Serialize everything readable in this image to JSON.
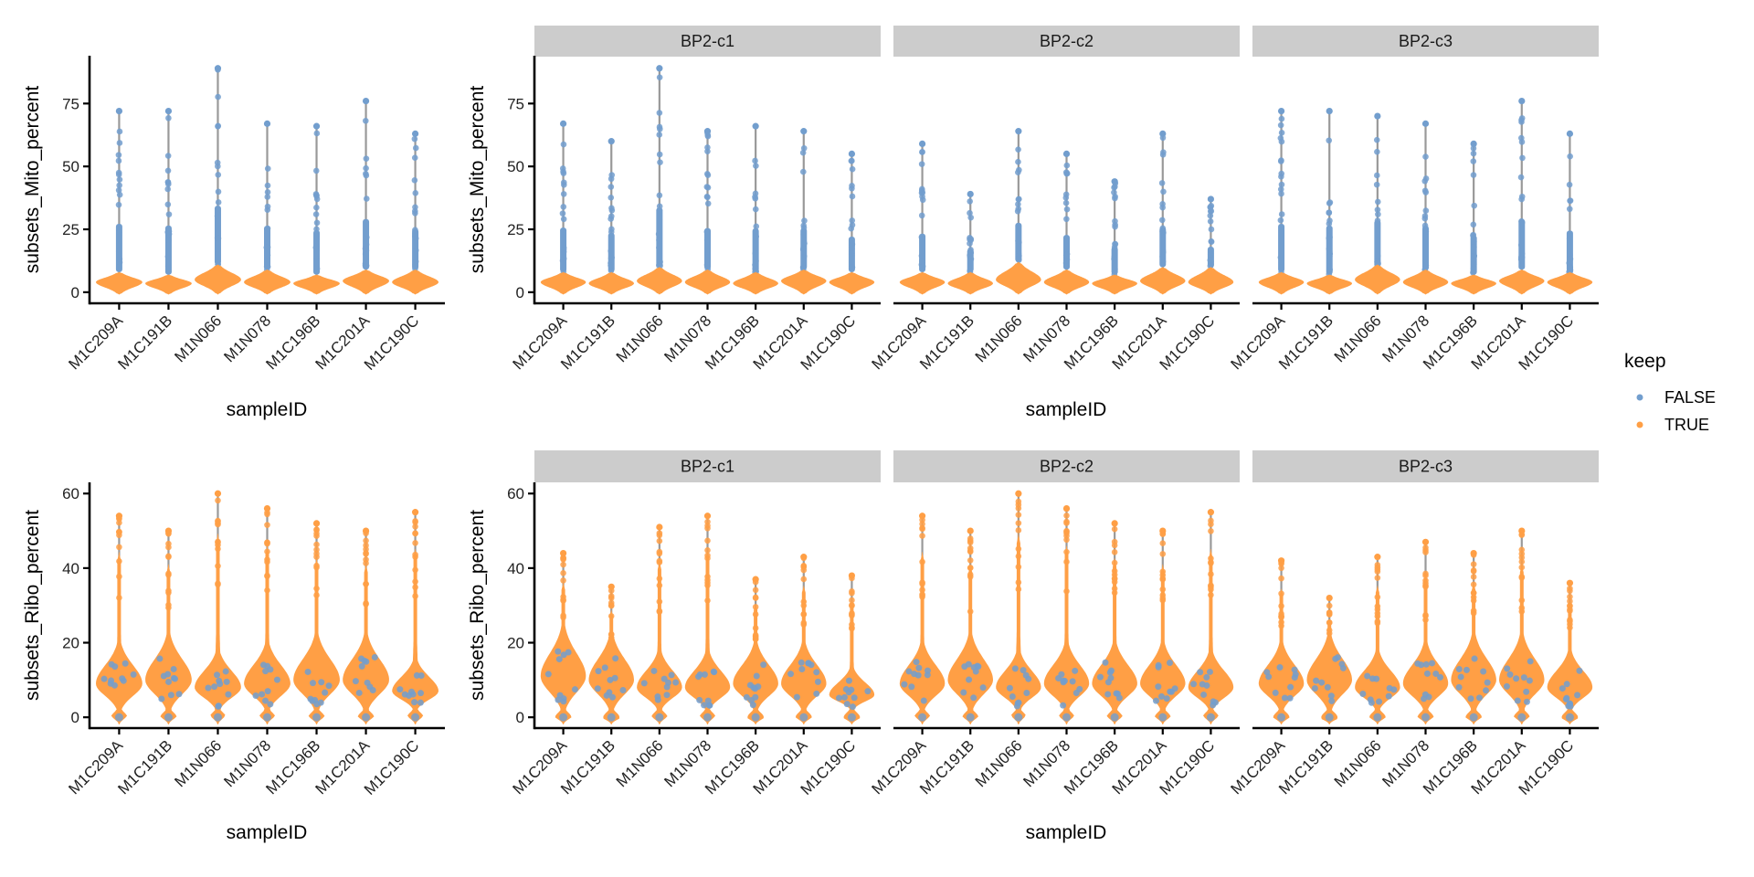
{
  "chart_data": {
    "type": "violin",
    "xlabel": "sampleID",
    "categories": [
      "M1C209A",
      "M1C191B",
      "M1N066",
      "M1N078",
      "M1C196B",
      "M1C201A",
      "M1C190C"
    ],
    "colors": {
      "FALSE": "#729ECE",
      "TRUE": "#FF9F45",
      "whisker": "#999999",
      "strip": "#CCCCCC"
    },
    "legend": {
      "title": "keep",
      "position": "right",
      "entries": [
        {
          "label": "FALSE",
          "color": "#729ECE"
        },
        {
          "label": "TRUE",
          "color": "#FF9F45"
        }
      ]
    },
    "grid": false,
    "rows": [
      {
        "ylabel": "subsets_Mito_percent",
        "ylim": [
          -4.4,
          94
        ],
        "yticks": [
          0,
          25,
          50,
          75
        ],
        "panels": [
          {
            "facet": "",
            "max": [
              72,
              72,
              89,
              67,
              66,
              76,
              63
            ],
            "true_max": [
              8,
              7,
              11,
              9,
              7,
              9,
              9
            ],
            "mode": [
              4,
              3.5,
              5,
              4,
              3.5,
              4.5,
              4
            ]
          },
          {
            "facet": "BP2-c1",
            "max": [
              67,
              60,
              89,
              64,
              66,
              64,
              55
            ],
            "true_max": [
              8,
              8,
              10,
              9,
              8,
              9,
              8
            ],
            "mode": [
              4,
              3.5,
              4.5,
              4,
              3.5,
              4.5,
              4
            ]
          },
          {
            "facet": "BP2-c2",
            "max": [
              59,
              39,
              64,
              55,
              44,
              63,
              37
            ],
            "true_max": [
              8,
              8,
              12,
              9,
              7,
              10,
              10
            ],
            "mode": [
              4,
              3.5,
              5,
              4,
              3.5,
              4.5,
              4
            ]
          },
          {
            "facet": "BP2-c3",
            "max": [
              72,
              72,
              70,
              67,
              59,
              76,
              63
            ],
            "true_max": [
              8,
              7,
              11,
              9,
              7,
              9,
              8
            ],
            "mode": [
              4,
              3.5,
              5,
              4,
              3.5,
              4.5,
              4
            ]
          }
        ]
      },
      {
        "ylabel": "subsets_Ribo_percent",
        "ylim": [
          -2.9,
          63
        ],
        "yticks": [
          0,
          20,
          40,
          60
        ],
        "panels": [
          {
            "facet": "",
            "max": [
              54,
              50,
              60,
              56,
              52,
              50,
              55
            ],
            "mode": [
              9,
              10,
              8,
              9,
              10,
              10,
              7
            ]
          },
          {
            "facet": "BP2-c1",
            "max": [
              44,
              35,
              51,
              54,
              37,
              43,
              38
            ],
            "mode": [
              11,
              10,
              8,
              8,
              9,
              9,
              6
            ]
          },
          {
            "facet": "BP2-c2",
            "max": [
              54,
              50,
              60,
              56,
              52,
              50,
              55
            ],
            "mode": [
              9,
              10,
              8,
              9,
              9,
              9,
              8
            ]
          },
          {
            "facet": "BP2-c3",
            "max": [
              42,
              32,
              43,
              47,
              44,
              50,
              36
            ],
            "mode": [
              9,
              10,
              8,
              9,
              10,
              10,
              8
            ]
          }
        ]
      }
    ]
  }
}
